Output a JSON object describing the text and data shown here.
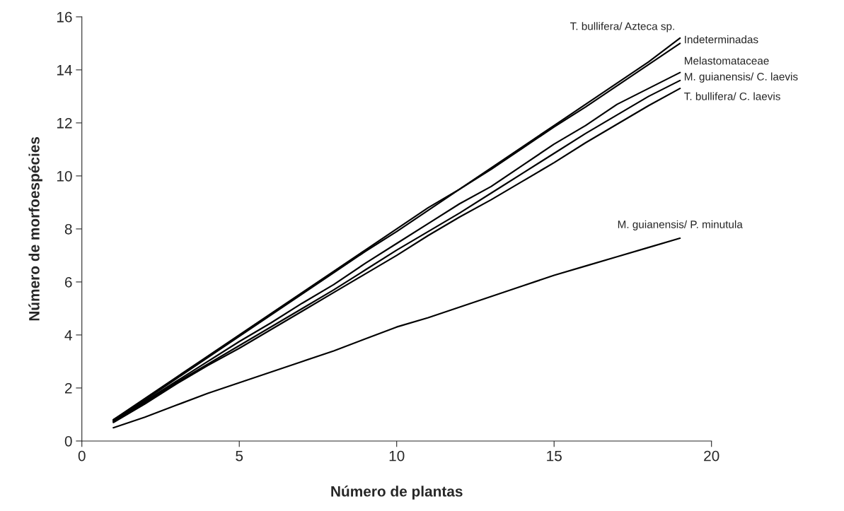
{
  "chart_data": {
    "type": "line",
    "xlabel": "Número de plantas",
    "ylabel": "Número de morfoespécies",
    "x": [
      1,
      2,
      3,
      4,
      5,
      6,
      7,
      8,
      9,
      10,
      11,
      12,
      13,
      14,
      15,
      16,
      17,
      18,
      19
    ],
    "xlim": [
      0,
      20
    ],
    "xticks": [
      0,
      5,
      10,
      15,
      20
    ],
    "ylim": [
      0,
      16
    ],
    "yticks": [
      0,
      2,
      4,
      6,
      8,
      10,
      12,
      14,
      16
    ],
    "grid": false,
    "legend": false,
    "marker": "none",
    "line_style": "solid",
    "series": [
      {
        "name": "T. bullifera/ Azteca sp.",
        "color": "#000000",
        "values": [
          0.8,
          1.6,
          2.4,
          3.2,
          4.0,
          4.8,
          5.6,
          6.4,
          7.2,
          8.0,
          8.8,
          9.5,
          10.3,
          11.1,
          11.9,
          12.7,
          13.5,
          14.3,
          15.2
        ]
      },
      {
        "name": "Indeterminadas",
        "color": "#000000",
        "values": [
          0.8,
          1.55,
          2.35,
          3.15,
          3.95,
          4.75,
          5.55,
          6.35,
          7.15,
          7.9,
          8.7,
          9.5,
          10.25,
          11.05,
          11.85,
          12.6,
          13.4,
          14.2,
          15.0
        ]
      },
      {
        "name": "Melastomataceae",
        "color": "#000000",
        "values": [
          0.75,
          1.5,
          2.25,
          3.0,
          3.75,
          4.45,
          5.2,
          5.9,
          6.7,
          7.45,
          8.2,
          8.95,
          9.6,
          10.4,
          11.2,
          11.9,
          12.7,
          13.3,
          13.9
        ]
      },
      {
        "name": "M. guianensis/ C. laevis",
        "color": "#000000",
        "values": [
          0.75,
          1.45,
          2.2,
          2.9,
          3.6,
          4.3,
          5.0,
          5.7,
          6.45,
          7.2,
          7.9,
          8.6,
          9.35,
          10.1,
          10.85,
          11.6,
          12.3,
          13.0,
          13.6
        ]
      },
      {
        "name": "T. bullifera/ C. laevis",
        "color": "#000000",
        "values": [
          0.7,
          1.4,
          2.15,
          2.85,
          3.5,
          4.2,
          4.9,
          5.6,
          6.3,
          7.0,
          7.75,
          8.45,
          9.1,
          9.8,
          10.5,
          11.25,
          11.95,
          12.65,
          13.3
        ]
      },
      {
        "name": "M. guianensis/ P. minutula",
        "color": "#000000",
        "values": [
          0.5,
          0.9,
          1.35,
          1.8,
          2.2,
          2.6,
          3.0,
          3.4,
          3.85,
          4.3,
          4.65,
          5.05,
          5.45,
          5.85,
          6.25,
          6.6,
          6.95,
          7.3,
          7.65
        ]
      }
    ]
  }
}
